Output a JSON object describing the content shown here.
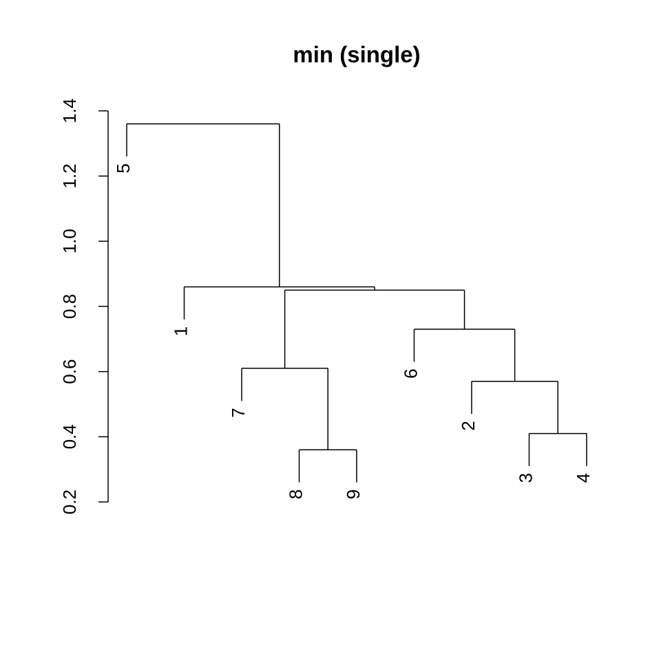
{
  "chart_data": {
    "type": "dendrogram",
    "title": "min (single)",
    "ylim": [
      0.2,
      1.4
    ],
    "yticks": [
      {
        "value": 0.2,
        "label": "0.2"
      },
      {
        "value": 0.4,
        "label": "0.4"
      },
      {
        "value": 0.6,
        "label": "0.6"
      },
      {
        "value": 0.8,
        "label": "0.8"
      },
      {
        "value": 1.0,
        "label": "1.0"
      },
      {
        "value": 1.2,
        "label": "1.2"
      },
      {
        "value": 1.4,
        "label": "1.4"
      }
    ],
    "hang": 0.1,
    "color": "#000000",
    "tree": {
      "height": 1.36,
      "children": [
        {
          "label": "5"
        },
        {
          "height": 0.86,
          "children": [
            {
              "label": "1"
            },
            {
              "height": 0.85,
              "children": [
                {
                  "height": 0.61,
                  "children": [
                    {
                      "label": "7"
                    },
                    {
                      "height": 0.36,
                      "children": [
                        {
                          "label": "8"
                        },
                        {
                          "label": "9"
                        }
                      ]
                    }
                  ]
                },
                {
                  "height": 0.73,
                  "children": [
                    {
                      "label": "6"
                    },
                    {
                      "height": 0.57,
                      "children": [
                        {
                          "label": "2"
                        },
                        {
                          "height": 0.41,
                          "children": [
                            {
                              "label": "3"
                            },
                            {
                              "label": "4"
                            }
                          ]
                        }
                      ]
                    }
                  ]
                }
              ]
            }
          ]
        }
      ]
    }
  }
}
